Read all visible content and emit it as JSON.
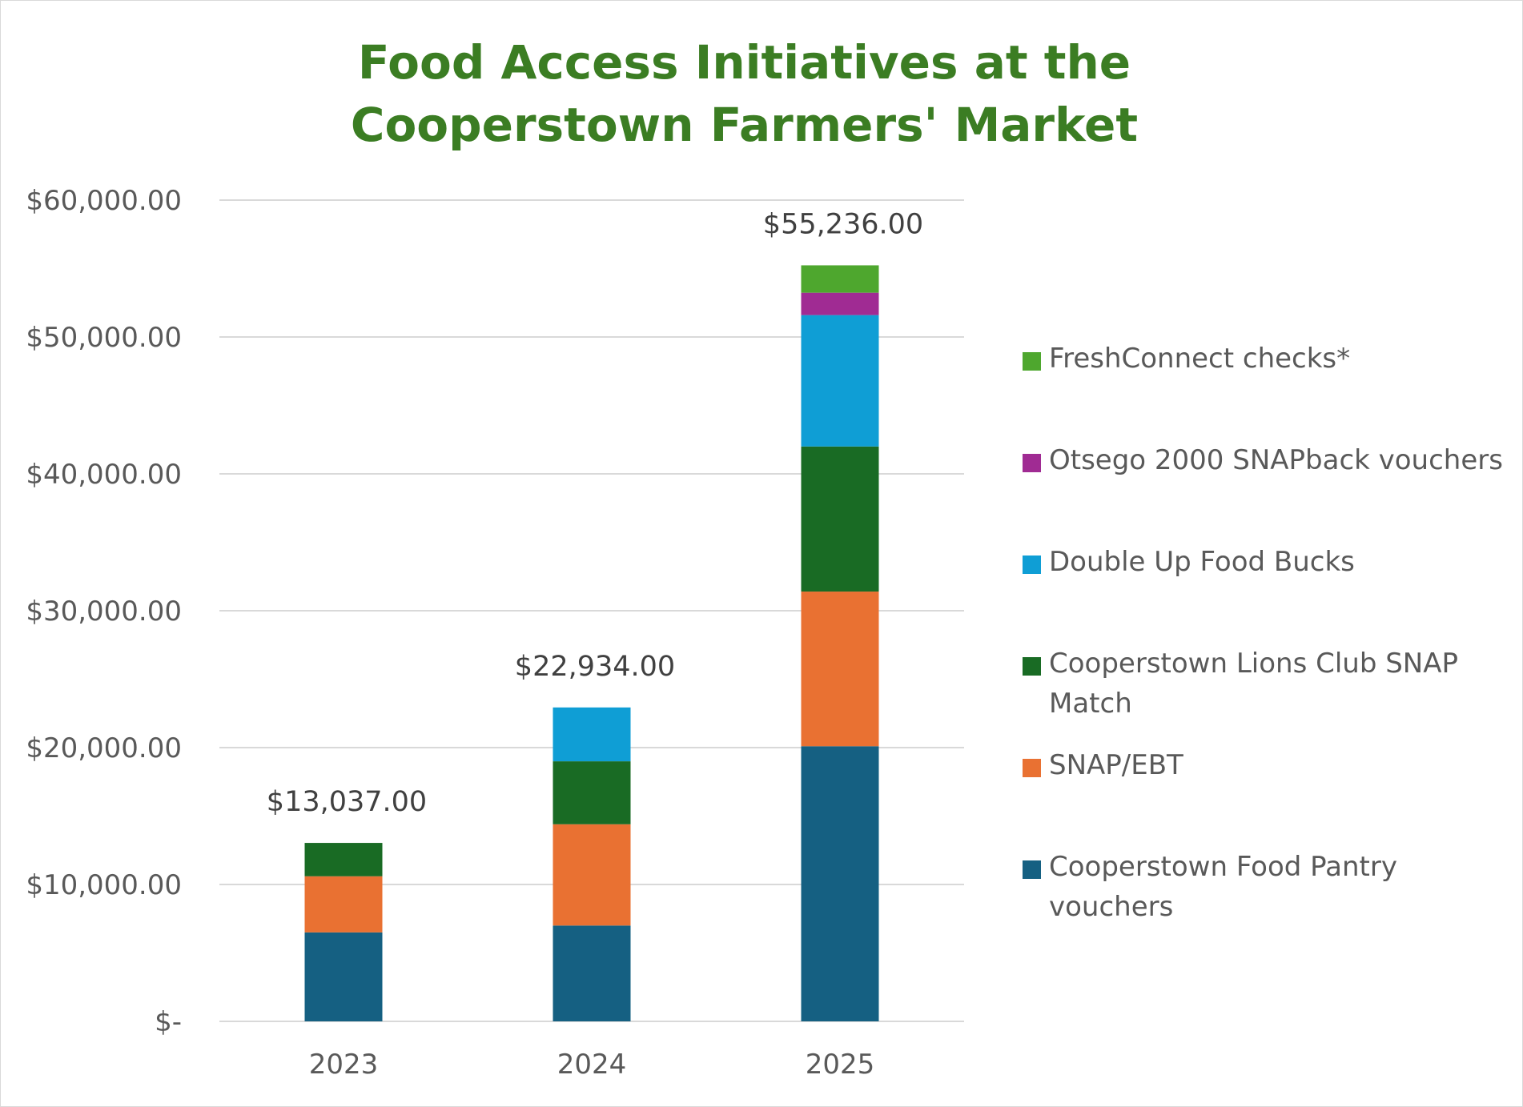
{
  "chart_data": {
    "type": "bar",
    "stacked": true,
    "title_lines": [
      "Food Access Initiatives at the",
      "Cooperstown Farmers' Market"
    ],
    "categories": [
      "2023",
      "2024",
      "2025"
    ],
    "totals": [
      13037,
      22934,
      55236
    ],
    "total_labels": [
      "$13,037.00",
      "$22,934.00",
      "$55,236.00"
    ],
    "ylim": [
      0,
      60000
    ],
    "y_ticks": [
      0,
      10000,
      20000,
      30000,
      40000,
      50000,
      60000
    ],
    "y_tick_labels": [
      "$-",
      "$10,000.00",
      "$20,000.00",
      "$30,000.00",
      "$40,000.00",
      "$50,000.00",
      "$60,000.00"
    ],
    "grid": true,
    "legend_position": "right",
    "series": [
      {
        "name": "Cooperstown Food Pantry vouchers",
        "color": "#156082",
        "values": [
          6500,
          7000,
          20100
        ]
      },
      {
        "name": "SNAP/EBT",
        "color": "#e97132",
        "values": [
          4100,
          7400,
          11300
        ]
      },
      {
        "name": "Cooperstown Lions Club SNAP Match",
        "color": "#196b24",
        "values": [
          2437,
          4600,
          10600
        ]
      },
      {
        "name": "Double Up Food Bucks",
        "color": "#0f9ed5",
        "values": [
          0,
          3934,
          9600
        ]
      },
      {
        "name": "Otsego 2000 SNAPback vouchers",
        "color": "#a02b93",
        "values": [
          0,
          0,
          1636
        ]
      },
      {
        "name": "FreshConnect checks*",
        "color": "#4ea72e",
        "values": [
          0,
          0,
          2000
        ]
      }
    ]
  }
}
